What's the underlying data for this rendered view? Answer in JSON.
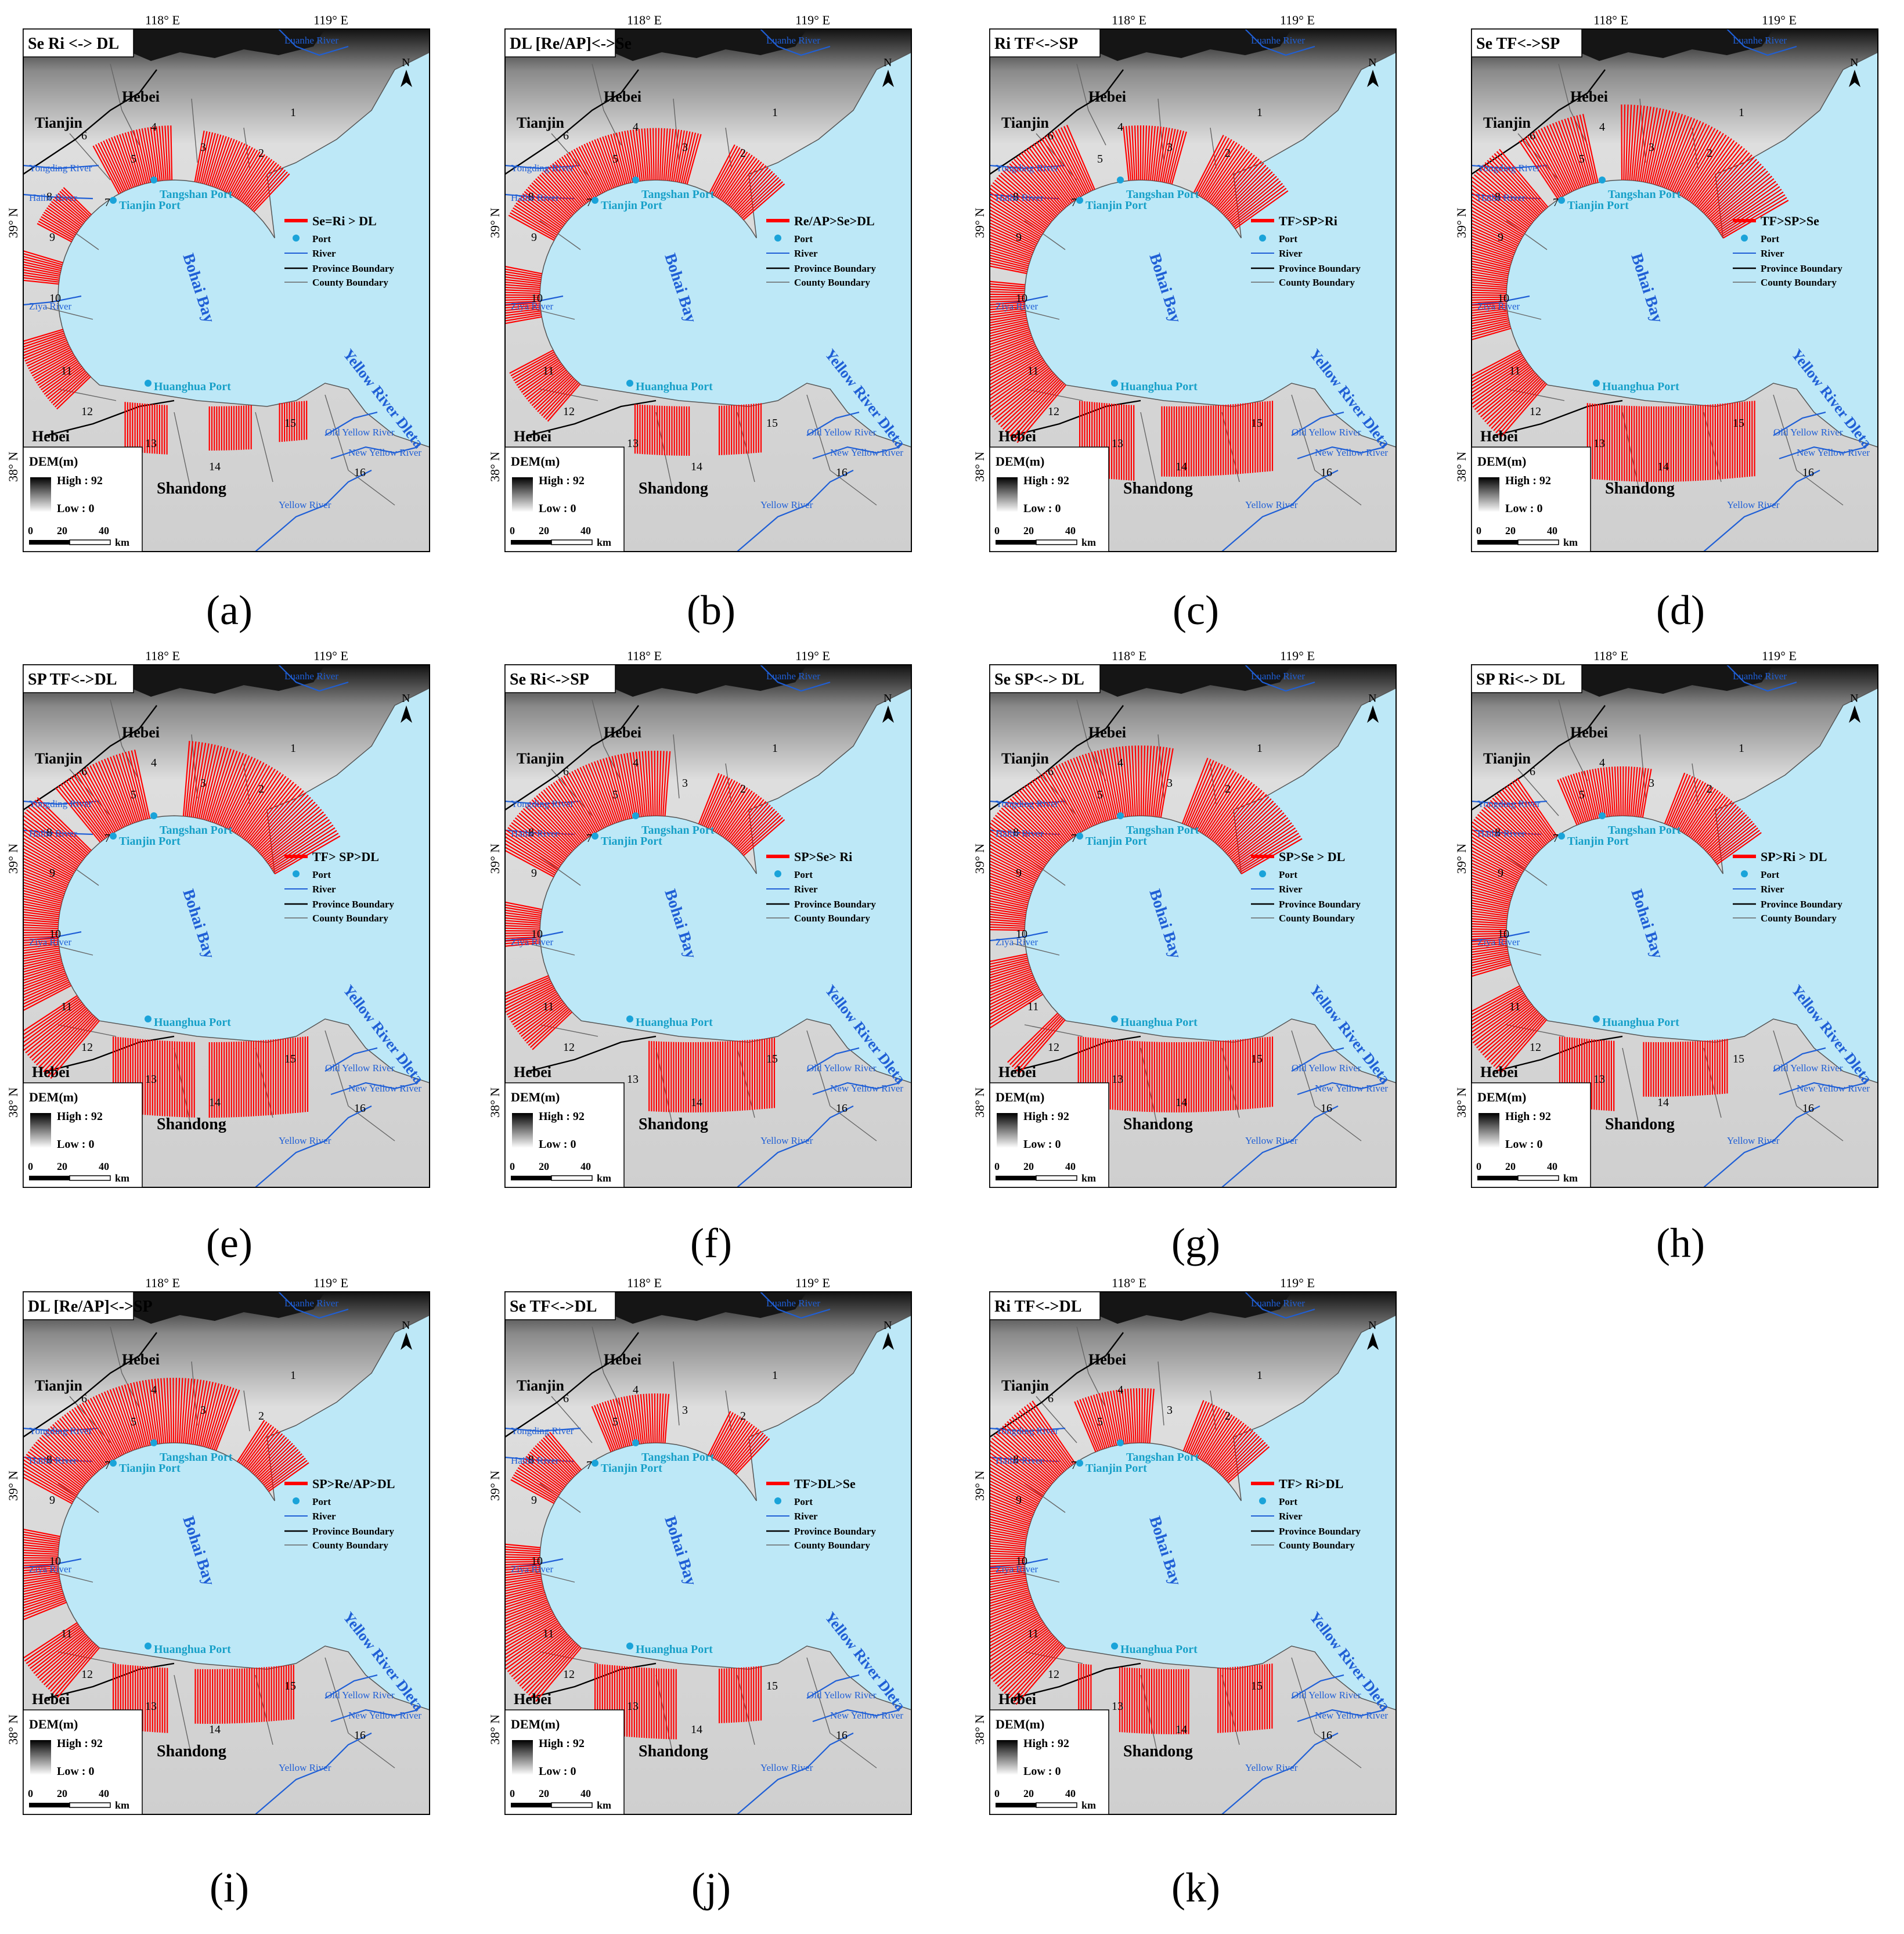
{
  "shared_labels": {
    "lon_118": "118° E",
    "lon_119": "119° E",
    "lat_39": "39° N",
    "lat_38": "38° N",
    "north": "N",
    "bay": "Bohai Bay",
    "delta": "Yellow River Dleta",
    "hebei_n": "Hebei",
    "hebei_s": "Hebei",
    "tianjin": "Tianjin",
    "shandong": "Shandong",
    "tianjin_port": "Tianjin Port",
    "tangshan_port": "Tangshan Port",
    "huanghua_port": "Huanghua Port",
    "luanhe": "Luanhe River",
    "yongding": "Yongding River",
    "haihe": "Haihe River",
    "ziya": "Ziya River",
    "old_yellow": "Old Yellow River",
    "new_yellow": "New Yellow River",
    "yellow": "Yellow River",
    "dem_title": "DEM(m)",
    "dem_high": "High : 92",
    "dem_low": "Low : 0",
    "scale_0": "0",
    "scale_20": "20",
    "scale_40": "40",
    "scale_km": "km",
    "leg_port": "Port",
    "leg_river": "River",
    "leg_province": "Province Boundary",
    "leg_county": "County Boundary",
    "numbers": [
      "1",
      "2",
      "3",
      "4",
      "5",
      "6",
      "7",
      "8",
      "9",
      "10",
      "11",
      "12",
      "13",
      "14",
      "15",
      "16"
    ]
  },
  "colors": {
    "sea": "#bde8f7",
    "land": "#dcdcdc",
    "river": "#1f5fd6",
    "transect": "#ff0000",
    "port": "#1aa3d9",
    "label_blue": "#1f5fd6",
    "port_text": "#17a0c8"
  },
  "panels": [
    {
      "id": "a",
      "title": "Se  Ri <-> DL",
      "legend": "Se=Ri > DL",
      "caption": "(a)",
      "segments": [
        [
          6,
          18,
          0.55
        ],
        [
          22,
          32,
          0.6
        ],
        [
          38,
          44,
          0.3
        ],
        [
          48,
          52,
          0.4
        ],
        [
          60,
          70,
          0.45
        ],
        [
          74,
          80,
          0.5
        ],
        [
          86,
          92,
          0.4
        ],
        [
          96,
          100,
          0.3
        ]
      ]
    },
    {
      "id": "b",
      "title": "DL [Re/AP]<->Se",
      "legend": "Re/AP>Se>DL",
      "caption": "(b)",
      "segments": [
        [
          4,
          12,
          0.6
        ],
        [
          16,
          44,
          0.55
        ],
        [
          50,
          58,
          0.45
        ],
        [
          64,
          72,
          0.5
        ],
        [
          78,
          86,
          0.5
        ],
        [
          90,
          96,
          0.5
        ]
      ]
    },
    {
      "id": "c",
      "title": "Ri  TF<->SP",
      "legend": "TF>SP>Ri",
      "caption": "(c)",
      "segments": [
        [
          2,
          12,
          0.8
        ],
        [
          16,
          24,
          0.6
        ],
        [
          30,
          50,
          0.9
        ],
        [
          52,
          80,
          1.0
        ],
        [
          84,
          100,
          0.9
        ]
      ]
    },
    {
      "id": "d",
      "title": "Se  TF<->SP",
      "legend": "TF>SP>Se",
      "caption": "(d)",
      "segments": [
        [
          0,
          22,
          1.0
        ],
        [
          26,
          34,
          0.9
        ],
        [
          36,
          60,
          1.0
        ],
        [
          64,
          72,
          0.9
        ],
        [
          76,
          100,
          1.0
        ]
      ]
    },
    {
      "id": "e",
      "title": "SP  TF<->DL",
      "legend": "TF> SP>DL",
      "caption": "(e)",
      "segments": [
        [
          0,
          20,
          1.0
        ],
        [
          26,
          36,
          0.9
        ],
        [
          38,
          64,
          1.0
        ],
        [
          66,
          84,
          1.0
        ],
        [
          86,
          100,
          1.0
        ]
      ]
    },
    {
      "id": "f",
      "title": "Se  Ri<->SP",
      "legend": "SP>Se> Ri",
      "caption": "(f)",
      "segments": [
        [
          4,
          14,
          0.6
        ],
        [
          20,
          44,
          0.8
        ],
        [
          50,
          56,
          0.4
        ],
        [
          62,
          70,
          0.6
        ],
        [
          80,
          98,
          0.9
        ]
      ]
    },
    {
      "id": "g",
      "title": "Se  SP<-> DL",
      "legend": "SP>Se > DL",
      "caption": "(g)",
      "segments": [
        [
          0,
          14,
          0.9
        ],
        [
          18,
          54,
          0.9
        ],
        [
          58,
          66,
          0.8
        ],
        [
          70,
          100,
          0.9
        ]
      ]
    },
    {
      "id": "h",
      "title": "SP  Ri<-> DL",
      "legend": "SP>Ri > DL",
      "caption": "(h)",
      "segments": [
        [
          2,
          14,
          0.6
        ],
        [
          18,
          30,
          0.5
        ],
        [
          34,
          60,
          0.9
        ],
        [
          64,
          80,
          0.9
        ],
        [
          84,
          96,
          0.6
        ]
      ]
    },
    {
      "id": "i",
      "title": "DL  [Re/AP]<->SP",
      "legend": "SP>Re/AP>DL",
      "caption": "(i)",
      "segments": [
        [
          2,
          10,
          0.5
        ],
        [
          14,
          44,
          0.8
        ],
        [
          50,
          62,
          0.7
        ],
        [
          66,
          80,
          0.8
        ],
        [
          84,
          98,
          0.6
        ]
      ]
    },
    {
      "id": "j",
      "title": "Se  TF<->DL",
      "legend": "TF>DL>Se",
      "caption": "(j)",
      "segments": [
        [
          6,
          12,
          0.5
        ],
        [
          20,
          30,
          0.5
        ],
        [
          36,
          44,
          0.5
        ],
        [
          52,
          84,
          0.9
        ],
        [
          90,
          96,
          0.6
        ]
      ]
    },
    {
      "id": "k",
      "title": "Ri  TF<->DL",
      "legend": "TF> Ri>DL",
      "caption": "(k)",
      "segments": [
        [
          4,
          14,
          0.6
        ],
        [
          20,
          30,
          0.6
        ],
        [
          34,
          74,
          1.0
        ],
        [
          78,
          88,
          0.8
        ],
        [
          92,
          100,
          0.8
        ]
      ]
    }
  ]
}
